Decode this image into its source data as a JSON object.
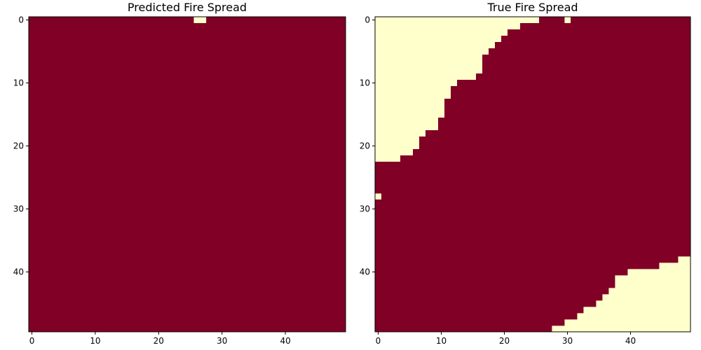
{
  "chart_data": [
    {
      "type": "heatmap",
      "title": "Predicted Fire Spread",
      "xlim": [
        -0.5,
        49.5
      ],
      "ylim": [
        49.5,
        -0.5
      ],
      "xticks": [
        "0",
        "10",
        "20",
        "30",
        "40"
      ],
      "yticks": [
        "0",
        "10",
        "20",
        "30",
        "40"
      ],
      "grid": false,
      "legend": "none",
      "colors": {
        "burned": "#800026",
        "unburned": "#ffffcc"
      },
      "rows": [
        "0-25,28-49",
        "0-20,21-49",
        "0-19,20-49",
        "0-18,19-49",
        "0-17,18-49",
        "0-16,17-49",
        "0-16,17-49",
        "0-14,15-49",
        "0-14,15-49",
        "0-14,15-49",
        "0-13,14-49",
        "0-13,14-49",
        "0-12,13-49",
        "0-11,12-49",
        "0-11,12-49",
        "0-10,11-49",
        "0-10,11-49",
        "0-9,10-49",
        "0-9,10-49",
        "0-8,9-49",
        "0-6,7-49",
        "0-5,6-49",
        "0-4,5-49",
        "0-2,3-49",
        "0-1,2-49",
        "0-0,1-49",
        "0-49",
        "0-49",
        "0-49",
        "0-49",
        "0-49",
        "0-49",
        "0-49",
        "0-49",
        "0-49",
        "0-49",
        "0-46,47-49",
        "0-45,46-49",
        "0-44,45-49",
        "0-43,44-49",
        "0-42,43-49",
        "0-41,42-49",
        "0-40,41-49",
        "0-38,39-49",
        "0-36,37-49",
        "0-35,36-49",
        "0-34,35-49",
        "0-32,33-49",
        "0-31,32-49",
        "0-30,31-49"
      ]
    },
    {
      "type": "heatmap",
      "title": "True Fire Spread",
      "xlim": [
        -0.5,
        49.5
      ],
      "ylim": [
        49.5,
        -0.5
      ],
      "xticks": [
        "0",
        "10",
        "20",
        "30",
        "40"
      ],
      "yticks": [
        "0",
        "10",
        "20",
        "30",
        "40"
      ],
      "grid": false,
      "legend": "none",
      "colors": {
        "burned": "#800026",
        "unburned": "#ffffcc"
      },
      "rows": [
        "26-29,31-49",
        "23-25,26-28,29-33,34-37,38-49",
        "21-23,24-35,36-37,38-49",
        "20-34,35-36,37-49",
        "19-34,35-35,36-49",
        "18-34,35-35,36-49",
        "17-36,37-49",
        "17-49",
        "17-49",
        "16-49",
        "13-49",
        "12-49",
        "12-49",
        "11-49",
        "11-49",
        "11-49",
        "10-49",
        "10-49",
        "8-49",
        "7-49",
        "7-49",
        "6-49",
        "4-49",
        "0-49",
        "0-49",
        "0-49",
        "0-49",
        "0-49",
        "1-49",
        "0-49",
        "0-49",
        "0-49",
        "0-49",
        "0-49",
        "0-49",
        "0-49",
        "0-49",
        "0-43,44-46,47-49",
        "0-38,39-40,41-43,44-47",
        "0-37,38-41,42-42,43-44",
        "0-37,38-39",
        "0-37",
        "0-37",
        "0-36",
        "0-35",
        "0-34",
        "0-32",
        "0-31",
        "0-29",
        "0-27"
      ]
    }
  ]
}
